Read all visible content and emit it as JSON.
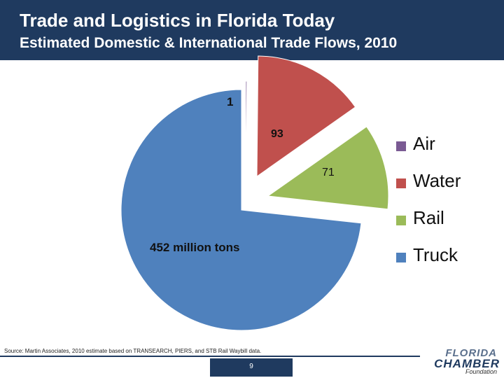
{
  "header": {
    "title": "Trade and Logistics in Florida Today",
    "subtitle": "Estimated Domestic & International Trade Flows, 2010"
  },
  "chart_data": {
    "type": "pie",
    "title": "Estimated Domestic & International Trade Flows, 2010",
    "categories": [
      "Air",
      "Water",
      "Rail",
      "Truck"
    ],
    "values": [
      1,
      93,
      71,
      452
    ],
    "colors": [
      "#7a5a93",
      "#c0504d",
      "#9bbb59",
      "#4f81bd"
    ],
    "data_labels": [
      "1",
      "93",
      "71",
      "452 million tons"
    ],
    "legend_position": "right"
  },
  "source": "Source: Martin Associates, 2010 estimate based on TRANSEARCH, PIERS, and STB Rail Waybill data.",
  "page_number": "9",
  "logo": {
    "line1": "FLORIDA",
    "line2": "CHAMBER",
    "line3": "Foundation"
  }
}
